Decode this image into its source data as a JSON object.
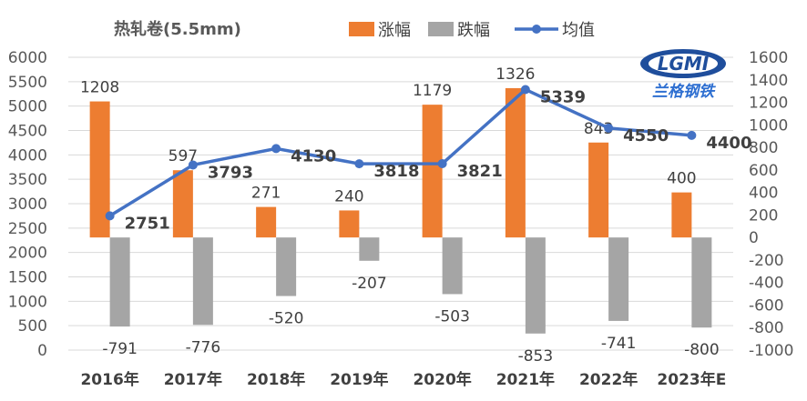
{
  "chart_data": {
    "type": "bar+line",
    "title": "热轧卷(5.5mm)",
    "categories": [
      "2016年",
      "2017年",
      "2018年",
      "2019年",
      "2020年",
      "2021年",
      "2022年",
      "2023年E"
    ],
    "series": [
      {
        "name": "涨幅",
        "type": "bar",
        "axis": "right",
        "color": "#ED7D31",
        "values": [
          1208,
          597,
          271,
          240,
          1179,
          1326,
          843,
          400
        ]
      },
      {
        "name": "跌幅",
        "type": "bar",
        "axis": "right",
        "color": "#A5A5A5",
        "values": [
          -791,
          -776,
          -520,
          -207,
          -503,
          -853,
          -741,
          -800
        ]
      },
      {
        "name": "均值",
        "type": "line",
        "axis": "left",
        "color": "#4472C4",
        "values": [
          2751,
          3793,
          4130,
          3818,
          3821,
          5339,
          4550,
          4400
        ]
      }
    ],
    "left_axis": {
      "ylim": [
        0,
        6000
      ],
      "step": 500
    },
    "right_axis": {
      "ylim": [
        -1000,
        1600
      ],
      "step": 200
    },
    "grid": true,
    "legend": "top"
  },
  "logo": {
    "text": "LGMI",
    "subtitle": "兰格钢铁"
  }
}
